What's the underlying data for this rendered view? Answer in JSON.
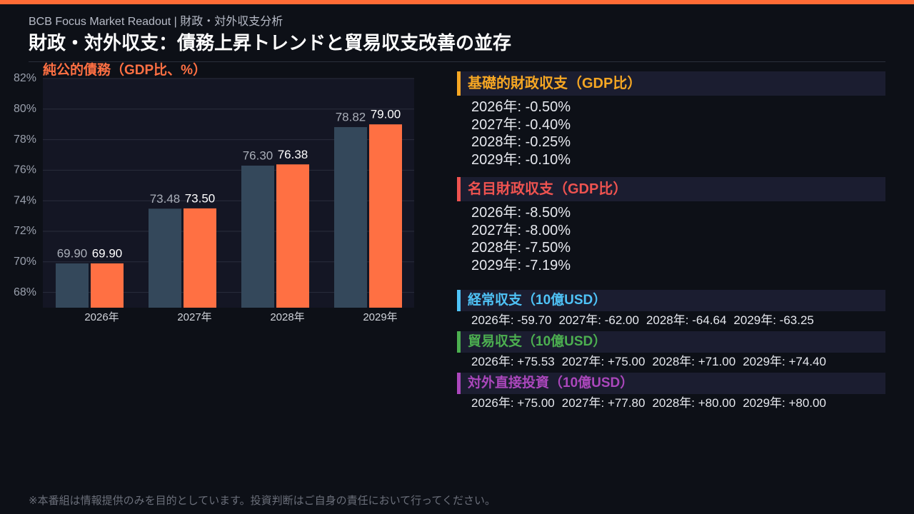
{
  "header": {
    "subtitle": "BCB Focus Market Readout | 財政・対外収支分析",
    "title": "財政・対外収支：債務上昇トレンドと貿易収支改善の並存"
  },
  "chart_data": {
    "type": "bar",
    "title": "純公的債務（GDP比、%）",
    "categories": [
      "2026年",
      "2027年",
      "2028年",
      "2029年"
    ],
    "series": [
      {
        "color": "#34485b",
        "values": [
          69.9,
          73.48,
          76.3,
          78.82
        ],
        "value_labels": [
          "69.90",
          "73.48",
          "76.30",
          "78.82"
        ]
      },
      {
        "color": "#ff7043",
        "values": [
          69.9,
          73.5,
          76.38,
          79.0
        ],
        "value_labels": [
          "69.90",
          "73.50",
          "76.38",
          "79.00"
        ]
      }
    ],
    "ylim": [
      67,
      82
    ],
    "yticks": [
      {
        "value": 68,
        "label": "68%"
      },
      {
        "value": 70,
        "label": "70%"
      },
      {
        "value": 72,
        "label": "72%"
      },
      {
        "value": 74,
        "label": "74%"
      },
      {
        "value": 76,
        "label": "76%"
      },
      {
        "value": 78,
        "label": "78%"
      },
      {
        "value": 80,
        "label": "80%"
      },
      {
        "value": 82,
        "label": "82%"
      }
    ],
    "grid": true
  },
  "panels": [
    {
      "title": "基礎的財政収支（GDP比）",
      "color": "#f5a623",
      "lines": [
        "2026年: -0.50%",
        "2027年: -0.40%",
        "2028年: -0.25%",
        "2029年: -0.10%"
      ]
    },
    {
      "title": "名目財政収支（GDP比）",
      "color": "#ef5350",
      "lines": [
        "2026年: -8.50%",
        "2027年: -8.00%",
        "2028年: -7.50%",
        "2029年: -7.19%"
      ]
    },
    {
      "title": "経常収支（10億USD）",
      "color": "#4fc3f7",
      "lines": [
        "2026年: -59.70",
        "2027年: -62.00",
        "2028年: -64.64",
        "2029年: -63.25"
      ]
    },
    {
      "title": "貿易収支（10億USD）",
      "color": "#4caf50",
      "lines": [
        "2026年: +75.53",
        "2027年: +75.00",
        "2028年: +71.00",
        "2029年: +74.40"
      ]
    },
    {
      "title": "対外直接投資（10億USD）",
      "color": "#ab47bc",
      "lines": [
        "2026年: +75.00",
        "2027年: +77.80",
        "2028年: +80.00",
        "2029年: +80.00"
      ]
    }
  ],
  "footer": "※本番組は情報提供のみを目的としています。投資判断はご自身の責任において行ってください。"
}
